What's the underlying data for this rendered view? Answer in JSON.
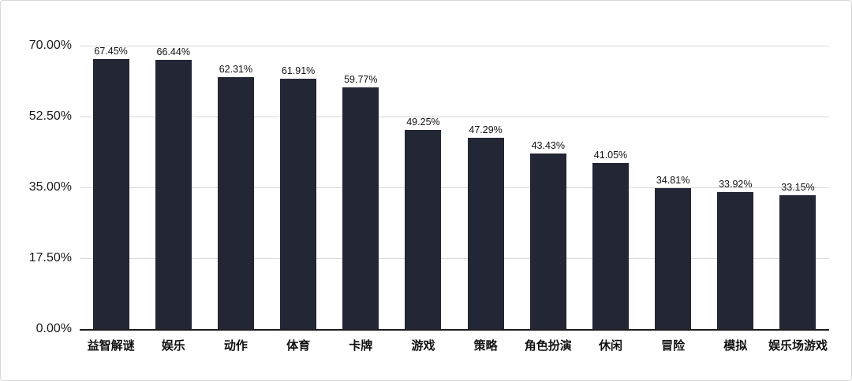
{
  "chart_data": {
    "type": "bar",
    "title": "",
    "categories": [
      "益智解谜",
      "娱乐",
      "动作",
      "体育",
      "卡牌",
      "游戏",
      "策略",
      "角色扮演",
      "休闲",
      "冒险",
      "模拟",
      "娱乐场游戏"
    ],
    "values": [
      67.45,
      66.44,
      62.31,
      61.91,
      59.77,
      49.25,
      47.29,
      43.43,
      41.05,
      34.81,
      33.92,
      33.15
    ],
    "value_labels": [
      "67.45%",
      "66.44%",
      "62.31%",
      "61.91%",
      "59.77%",
      "49.25%",
      "47.29%",
      "43.43%",
      "41.05%",
      "34.81%",
      "33.92%",
      "33.15%"
    ],
    "y_ticks": [
      {
        "label": "70.00%",
        "value": 70
      },
      {
        "label": "52.50%",
        "value": 52.5
      },
      {
        "label": "35.00%",
        "value": 35
      },
      {
        "label": "17.50%",
        "value": 17.5
      },
      {
        "label": "0.00%",
        "value": 0
      }
    ],
    "ylim": [
      0,
      70
    ],
    "xlabel": "",
    "ylabel": "",
    "grid": true,
    "legend": false,
    "bar_color": "#232634",
    "gridline_color": "#d9d9d9",
    "axis_line_color": "#1c1c1c"
  }
}
